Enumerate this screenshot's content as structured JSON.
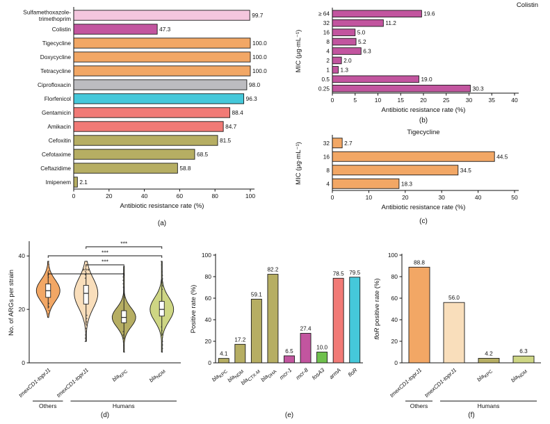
{
  "panel_labels": {
    "a": "(a)",
    "b": "(b)",
    "c": "(c)",
    "d": "(d)",
    "e": "(e)",
    "f": "(f)"
  },
  "chart_data": [
    {
      "panel": "a",
      "type": "bar",
      "orientation": "horizontal",
      "categories": [
        "Sulfamethoxazole-\ntrimethoprim",
        "Colistin",
        "Tigecycline",
        "Doxycycline",
        "Tetracycline",
        "Ciprofloxacin",
        "Florfenicol",
        "Gentamicin",
        "Amikacin",
        "Cefoxitin",
        "Cefotaxime",
        "Ceftazidime",
        "Imipenem"
      ],
      "values": [
        99.7,
        47.3,
        100.0,
        100.0,
        100.0,
        98.0,
        96.3,
        88.4,
        84.7,
        81.5,
        68.5,
        58.8,
        2.1
      ],
      "colors": [
        "#f4c6de",
        "#c2559f",
        "#f2a765",
        "#f2a765",
        "#f2a765",
        "#bcbcc0",
        "#45c8da",
        "#f17a76",
        "#f17a76",
        "#b6ae63",
        "#b6ae63",
        "#b6ae63",
        "#b6ae63"
      ],
      "xlabel": "Antibiotic resistance rate (%)",
      "xlim": [
        0,
        100
      ],
      "xticks": [
        0,
        20,
        40,
        60,
        80,
        100
      ]
    },
    {
      "panel": "b",
      "type": "bar",
      "orientation": "horizontal",
      "title": "Colistin",
      "categories": [
        "≥ 64",
        "32",
        "16",
        "8",
        "4",
        "2",
        "1",
        "0.5",
        "0.25"
      ],
      "values": [
        19.6,
        11.2,
        5.0,
        5.2,
        6.3,
        2.0,
        1.3,
        19.0,
        30.3
      ],
      "color": "#c2559f",
      "xlabel": "Antibiotic resistance rate (%)",
      "ylabel": "MIC (μg·mL⁻¹)",
      "xlim": [
        0,
        40
      ],
      "xticks": [
        0,
        5,
        10,
        15,
        20,
        25,
        30,
        35,
        40
      ]
    },
    {
      "panel": "c",
      "type": "bar",
      "orientation": "horizontal",
      "title": "Tigecycline",
      "categories": [
        "32",
        "16",
        "8",
        "4"
      ],
      "values": [
        2.7,
        44.5,
        34.5,
        18.3
      ],
      "color": "#f2a765",
      "xlabel": "Antibiotic resistance rate (%)",
      "ylabel": "MIC (μg·mL⁻¹)",
      "xlim": [
        0,
        50
      ],
      "xticks": [
        0,
        10,
        20,
        30,
        40,
        50
      ]
    },
    {
      "panel": "d",
      "type": "violin",
      "ylabel": "No. of ARGs per strain",
      "ylim": [
        0,
        45
      ],
      "yticks": [
        0,
        20,
        40
      ],
      "categories": [
        [
          {
            "t": "tmexCD1-toprJ1",
            "i": 1
          }
        ],
        [
          {
            "t": "tmexCD1-toprJ1",
            "i": 1
          }
        ],
        [
          {
            "t": "bla",
            "i": 1
          },
          {
            "t": "KPC",
            "s": 1
          }
        ],
        [
          {
            "t": "bla",
            "i": 1
          },
          {
            "t": "NDM",
            "s": 1
          }
        ]
      ],
      "colors": [
        "#f2a765",
        "#f9debb",
        "#b6ae63",
        "#ced684"
      ],
      "stats": [
        {
          "lo": 17,
          "q1": 24.5,
          "median": 27,
          "q3": 29.5,
          "hi": 38
        },
        {
          "lo": 8,
          "q1": 22,
          "median": 26,
          "q3": 29,
          "hi": 38
        },
        {
          "lo": 4,
          "q1": 15,
          "median": 17,
          "q3": 19.5,
          "hi": 36
        },
        {
          "lo": 4,
          "q1": 17.5,
          "median": 20,
          "q3": 23,
          "hi": 38
        }
      ],
      "significance": [
        {
          "from": 0,
          "to": 2,
          "label": "***"
        },
        {
          "from": 1,
          "to": 2,
          "label": "***"
        },
        {
          "from": 0,
          "to": 3,
          "label": "***"
        },
        {
          "from": 1,
          "to": 3,
          "label": "***"
        }
      ],
      "groups": [
        {
          "label": "Others",
          "from": 0,
          "to": 0
        },
        {
          "label": "Humans",
          "from": 1,
          "to": 3
        }
      ]
    },
    {
      "panel": "e",
      "type": "bar",
      "orientation": "vertical",
      "ylabel": "Positive rate (%)",
      "ylim": [
        0,
        100
      ],
      "yticks": [
        0,
        20,
        40,
        60,
        80,
        100
      ],
      "categories": [
        [
          {
            "t": "bla",
            "i": 1
          },
          {
            "t": "KPC",
            "s": 1
          }
        ],
        [
          {
            "t": "bla",
            "i": 1
          },
          {
            "t": "NDM",
            "s": 1
          }
        ],
        [
          {
            "t": "bla",
            "i": 1
          },
          {
            "t": "CTX-M",
            "s": 1
          }
        ],
        [
          {
            "t": "bla",
            "i": 1
          },
          {
            "t": "DHA",
            "s": 1
          }
        ],
        [
          {
            "t": "mcr-1",
            "i": 1
          }
        ],
        [
          {
            "t": "mcr-8",
            "i": 1
          }
        ],
        [
          {
            "t": "fosA3",
            "i": 1
          }
        ],
        [
          {
            "t": "armA",
            "i": 1
          }
        ],
        [
          {
            "t": "floR",
            "i": 1
          }
        ]
      ],
      "values": [
        4.1,
        17.2,
        59.1,
        82.2,
        6.5,
        27.4,
        10.0,
        78.5,
        79.5
      ],
      "colors": [
        "#b6ae63",
        "#b6ae63",
        "#b6ae63",
        "#b6ae63",
        "#c2559f",
        "#c2559f",
        "#6fc04d",
        "#f17a76",
        "#45c8da"
      ]
    },
    {
      "panel": "f",
      "type": "bar",
      "orientation": "vertical",
      "ylabel": [
        {
          "t": "floR",
          "i": 1
        },
        {
          "t": " positive rate (%)"
        }
      ],
      "ylim": [
        0,
        100
      ],
      "yticks": [
        0,
        20,
        40,
        60,
        80,
        100
      ],
      "categories": [
        [
          {
            "t": "tmexCD1-toprJ1",
            "i": 1
          }
        ],
        [
          {
            "t": "tmexCD1-toprJ1",
            "i": 1
          }
        ],
        [
          {
            "t": "bla",
            "i": 1
          },
          {
            "t": "KPC",
            "s": 1
          }
        ],
        [
          {
            "t": "bla",
            "i": 1
          },
          {
            "t": "NDM",
            "s": 1
          }
        ]
      ],
      "values": [
        88.8,
        56.0,
        4.2,
        6.3
      ],
      "colors": [
        "#f2a765",
        "#f9debb",
        "#b6ae63",
        "#ced684"
      ],
      "groups": [
        {
          "label": "Others",
          "from": 0,
          "to": 0
        },
        {
          "label": "Humans",
          "from": 1,
          "to": 3
        }
      ]
    }
  ]
}
